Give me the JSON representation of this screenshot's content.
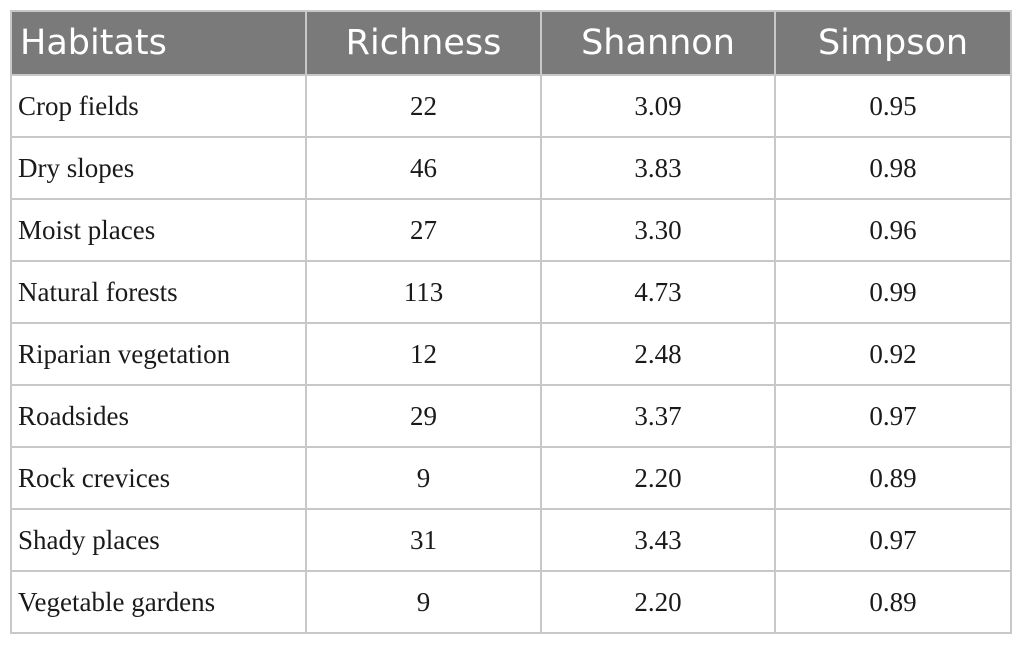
{
  "table": {
    "headers": [
      "Habitats",
      "Richness",
      "Shannon",
      "Simpson"
    ],
    "rows": [
      [
        "Crop fields",
        "22",
        "3.09",
        "0.95"
      ],
      [
        "Dry slopes",
        "46",
        "3.83",
        "0.98"
      ],
      [
        "Moist places",
        "27",
        "3.30",
        "0.96"
      ],
      [
        "Natural forests",
        "113",
        "4.73",
        "0.99"
      ],
      [
        "Riparian vegetation",
        "12",
        "2.48",
        "0.92"
      ],
      [
        "Roadsides",
        "29",
        "3.37",
        "0.97"
      ],
      [
        "Rock crevices",
        "9",
        "2.20",
        "0.89"
      ],
      [
        "Shady places",
        "31",
        "3.43",
        "0.97"
      ],
      [
        "Vegetable gardens",
        "9",
        "2.20",
        "0.89"
      ]
    ]
  },
  "colors": {
    "header_bg": "#7a7a7a",
    "header_text": "#ffffff",
    "border": "#c8c8c8"
  }
}
